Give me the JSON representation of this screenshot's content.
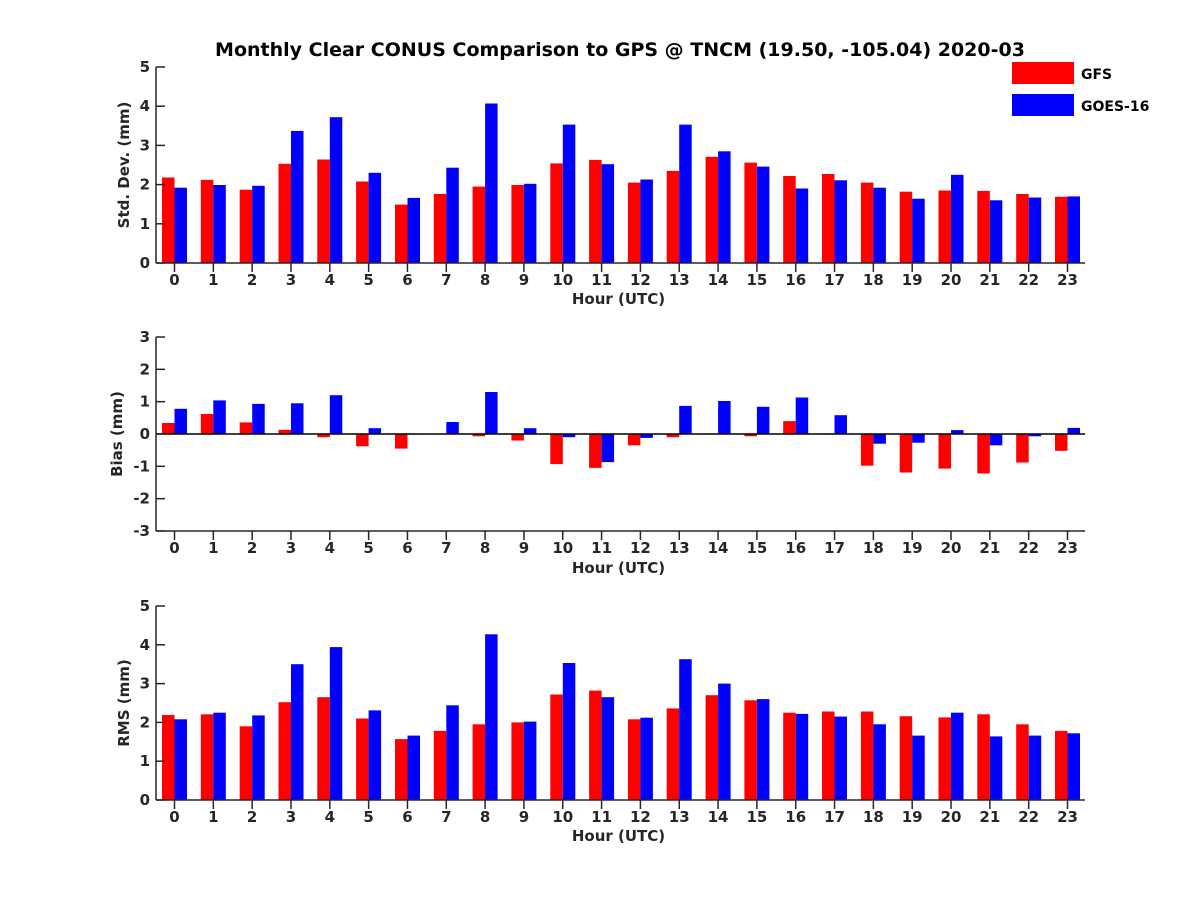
{
  "figure": {
    "title": "Monthly Clear CONUS Comparison to GPS @ TNCM (19.50, -105.04) 2020-03"
  },
  "colors": {
    "GFS": "#ff0000",
    "GOES-16": "#0000ff",
    "axis": "#262626"
  },
  "chart_data": [
    {
      "type": "bar",
      "title": "Monthly Clear CONUS Comparison to GPS @ TNCM (19.50, -105.04) 2020-03",
      "xlabel": "Hour (UTC)",
      "ylabel": "Std. Dev. (mm)",
      "ylim": [
        0,
        5
      ],
      "yticks": [
        0,
        1,
        2,
        3,
        4,
        5
      ],
      "categories": [
        "0",
        "1",
        "2",
        "3",
        "4",
        "5",
        "6",
        "7",
        "8",
        "9",
        "10",
        "11",
        "12",
        "13",
        "14",
        "15",
        "16",
        "17",
        "18",
        "19",
        "20",
        "21",
        "22",
        "23"
      ],
      "legend": "top-right",
      "grid": false,
      "series": [
        {
          "name": "GFS",
          "color": "#ff0000",
          "values": [
            2.18,
            2.12,
            1.87,
            2.53,
            2.64,
            2.08,
            1.49,
            1.76,
            1.95,
            1.99,
            2.54,
            2.63,
            2.05,
            2.35,
            2.71,
            2.56,
            2.22,
            2.27,
            2.05,
            1.82,
            1.85,
            1.84,
            1.76,
            1.69
          ]
        },
        {
          "name": "GOES-16",
          "color": "#0000ff",
          "values": [
            1.92,
            1.99,
            1.97,
            3.37,
            3.72,
            2.3,
            1.66,
            2.43,
            4.07,
            2.02,
            3.53,
            2.52,
            2.13,
            3.53,
            2.85,
            2.46,
            1.9,
            2.11,
            1.92,
            1.64,
            2.25,
            1.6,
            1.67,
            1.7
          ]
        }
      ]
    },
    {
      "type": "bar",
      "xlabel": "Hour (UTC)",
      "ylabel": "Bias (mm)",
      "ylim": [
        -3,
        3
      ],
      "yticks": [
        -3,
        -2,
        -1,
        0,
        1,
        2,
        3
      ],
      "categories": [
        "0",
        "1",
        "2",
        "3",
        "4",
        "5",
        "6",
        "7",
        "8",
        "9",
        "10",
        "11",
        "12",
        "13",
        "14",
        "15",
        "16",
        "17",
        "18",
        "19",
        "20",
        "21",
        "22",
        "23"
      ],
      "grid": false,
      "series": [
        {
          "name": "GFS",
          "color": "#ff0000",
          "values": [
            0.34,
            0.62,
            0.36,
            0.13,
            -0.1,
            -0.38,
            -0.45,
            0.0,
            -0.07,
            -0.2,
            -0.93,
            -1.05,
            -0.35,
            -0.1,
            0.02,
            -0.07,
            0.4,
            0.02,
            -0.98,
            -1.19,
            -1.07,
            -1.22,
            -0.88,
            -0.52
          ]
        },
        {
          "name": "GOES-16",
          "color": "#0000ff",
          "values": [
            0.78,
            1.04,
            0.93,
            0.95,
            1.2,
            0.18,
            -0.02,
            0.37,
            1.3,
            0.18,
            -0.1,
            -0.87,
            -0.12,
            0.87,
            1.02,
            0.84,
            1.13,
            0.58,
            -0.3,
            -0.27,
            0.12,
            -0.35,
            -0.07,
            0.19
          ]
        }
      ]
    },
    {
      "type": "bar",
      "xlabel": "Hour (UTC)",
      "ylabel": "RMS (mm)",
      "ylim": [
        0,
        5
      ],
      "yticks": [
        0,
        1,
        2,
        3,
        4,
        5
      ],
      "categories": [
        "0",
        "1",
        "2",
        "3",
        "4",
        "5",
        "6",
        "7",
        "8",
        "9",
        "10",
        "11",
        "12",
        "13",
        "14",
        "15",
        "16",
        "17",
        "18",
        "19",
        "20",
        "21",
        "22",
        "23"
      ],
      "grid": false,
      "series": [
        {
          "name": "GFS",
          "color": "#ff0000",
          "values": [
            2.19,
            2.21,
            1.9,
            2.52,
            2.65,
            2.1,
            1.57,
            1.78,
            1.95,
            2.0,
            2.72,
            2.82,
            2.08,
            2.36,
            2.7,
            2.57,
            2.25,
            2.28,
            2.28,
            2.16,
            2.13,
            2.21,
            1.95,
            1.78
          ]
        },
        {
          "name": "GOES-16",
          "color": "#0000ff",
          "values": [
            2.08,
            2.25,
            2.18,
            3.5,
            3.94,
            2.31,
            1.66,
            2.44,
            4.27,
            2.02,
            3.53,
            2.65,
            2.12,
            3.63,
            3.0,
            2.6,
            2.22,
            2.15,
            1.95,
            1.66,
            2.25,
            1.64,
            1.66,
            1.72
          ]
        }
      ]
    }
  ]
}
